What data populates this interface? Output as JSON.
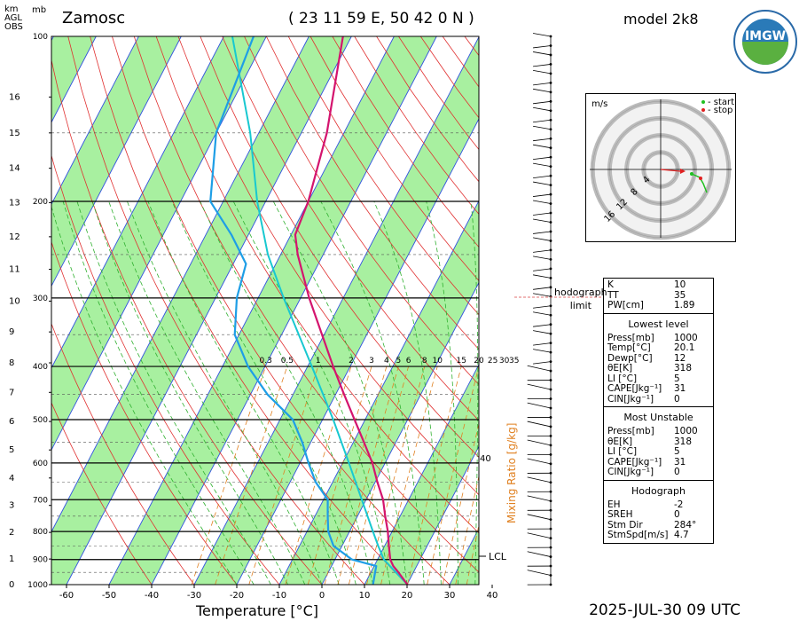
{
  "header": {
    "station": "Zamosc",
    "coords": "( 23 11 59 E, 50 42 0 N )",
    "model": "model 2k8",
    "logo_text": "IMGW",
    "unit_km": "km",
    "unit_agl": "AGL",
    "unit_obs": "OBS",
    "unit_mb": "mb",
    "date": "2025-JUL-30   09 UTC"
  },
  "chart_data": {
    "type": "skew-t",
    "xlabel": "Temperature [°C]",
    "mixing_ratio_label": "Mixing Ratio [g/kg]",
    "x_ticks": [
      -60,
      -50,
      -40,
      -30,
      -20,
      -10,
      0,
      10,
      20,
      30,
      40
    ],
    "pressure_ticks": [
      100,
      200,
      300,
      400,
      500,
      600,
      700,
      800,
      900,
      1000
    ],
    "km_ticks": [
      0,
      1,
      2,
      3,
      4,
      5,
      6,
      7,
      8,
      9,
      10,
      11,
      12,
      13,
      14,
      15,
      16
    ],
    "mixing_ratio_labels": [
      "0.3",
      "0.5",
      "1",
      "2",
      "3",
      "4",
      "5",
      "6",
      "8",
      "10",
      "15",
      "20",
      "25",
      "30",
      "35"
    ],
    "lcl_label": "LCL",
    "label_40": "40",
    "temperature": [
      {
        "p": 1000,
        "t": 20.1
      },
      {
        "p": 950,
        "t": 16.5
      },
      {
        "p": 925,
        "t": 14.5
      },
      {
        "p": 900,
        "t": 13
      },
      {
        "p": 850,
        "t": 11
      },
      {
        "p": 800,
        "t": 9
      },
      {
        "p": 750,
        "t": 6.5
      },
      {
        "p": 700,
        "t": 4
      },
      {
        "p": 650,
        "t": 0.5
      },
      {
        "p": 600,
        "t": -3
      },
      {
        "p": 550,
        "t": -7.5
      },
      {
        "p": 500,
        "t": -12.5
      },
      {
        "p": 450,
        "t": -18
      },
      {
        "p": 400,
        "t": -24
      },
      {
        "p": 350,
        "t": -30.5
      },
      {
        "p": 300,
        "t": -38
      },
      {
        "p": 250,
        "t": -46
      },
      {
        "p": 230,
        "t": -49
      },
      {
        "p": 200,
        "t": -50
      },
      {
        "p": 150,
        "t": -54
      },
      {
        "p": 100,
        "t": -62
      }
    ],
    "dewpoint": [
      {
        "p": 1000,
        "t": 12
      },
      {
        "p": 950,
        "t": 11
      },
      {
        "p": 925,
        "t": 10.5
      },
      {
        "p": 900,
        "t": 4
      },
      {
        "p": 850,
        "t": -2
      },
      {
        "p": 800,
        "t": -5
      },
      {
        "p": 750,
        "t": -7
      },
      {
        "p": 700,
        "t": -9
      },
      {
        "p": 650,
        "t": -14
      },
      {
        "p": 600,
        "t": -18
      },
      {
        "p": 550,
        "t": -22
      },
      {
        "p": 500,
        "t": -27
      },
      {
        "p": 450,
        "t": -36
      },
      {
        "p": 400,
        "t": -44
      },
      {
        "p": 350,
        "t": -51
      },
      {
        "p": 300,
        "t": -55
      },
      {
        "p": 260,
        "t": -57
      },
      {
        "p": 230,
        "t": -64
      },
      {
        "p": 200,
        "t": -73
      },
      {
        "p": 150,
        "t": -80
      },
      {
        "p": 100,
        "t": -83
      }
    ],
    "parcel": [
      {
        "p": 1000,
        "t": 20.1
      },
      {
        "p": 900,
        "t": 11.5
      },
      {
        "p": 850,
        "t": 8.5
      },
      {
        "p": 800,
        "t": 5.5
      },
      {
        "p": 700,
        "t": -1
      },
      {
        "p": 600,
        "t": -8.5
      },
      {
        "p": 500,
        "t": -17.5
      },
      {
        "p": 400,
        "t": -29
      },
      {
        "p": 300,
        "t": -44
      },
      {
        "p": 250,
        "t": -53
      },
      {
        "p": 200,
        "t": -62
      },
      {
        "p": 150,
        "t": -72
      },
      {
        "p": 100,
        "t": -88
      }
    ]
  },
  "hodograph": {
    "unit": "m/s",
    "rings": [
      "4",
      "8",
      "12",
      "16"
    ],
    "legend_start": "- start",
    "legend_stop": "- stop",
    "limit_label": "hodograph\nlimit"
  },
  "params": {
    "indices": [
      {
        "k": "K",
        "v": "10"
      },
      {
        "k": "TT",
        "v": "35"
      },
      {
        "k": "PW[cm]",
        "v": "1.89"
      }
    ],
    "lowest": {
      "title": "Lowest level",
      "rows": [
        {
          "k": "Press[mb]",
          "v": "1000"
        },
        {
          "k": "Temp[°C]",
          "v": "20.1"
        },
        {
          "k": "Dewp[°C]",
          "v": "12"
        },
        {
          "k": "θE[K]",
          "v": "318"
        },
        {
          "k": "LI [°C]",
          "v": "5"
        },
        {
          "k": "CAPE[Jkg⁻¹]",
          "v": "31"
        },
        {
          "k": "CIN[Jkg⁻¹]",
          "v": "0"
        }
      ]
    },
    "unstable": {
      "title": "Most Unstable",
      "rows": [
        {
          "k": "Press[mb]",
          "v": "1000"
        },
        {
          "k": "θE[K]",
          "v": "318"
        },
        {
          "k": "LI [°C]",
          "v": "5"
        },
        {
          "k": "CAPE[Jkg⁻¹]",
          "v": "31"
        },
        {
          "k": "CIN[Jkg⁻¹]",
          "v": "0"
        }
      ]
    },
    "hodo": {
      "title": "Hodograph",
      "rows": [
        {
          "k": "EH",
          "v": "-2"
        },
        {
          "k": "SREH",
          "v": "0"
        },
        {
          "k": "Stm Dir",
          "v": "284°"
        },
        {
          "k": "StmSpd[m/s]",
          "v": "4.7"
        }
      ]
    }
  },
  "colors": {
    "temperature": "#d4146e",
    "dewpoint": "#1e9ee6",
    "parcel": "#18c8d0",
    "green_band": "#a8f0a0",
    "isotherm": "#3050e0",
    "dry_adiabat": "#e03030",
    "moist_adiabat": "#30b030",
    "mixing_ratio": "#e08020"
  }
}
